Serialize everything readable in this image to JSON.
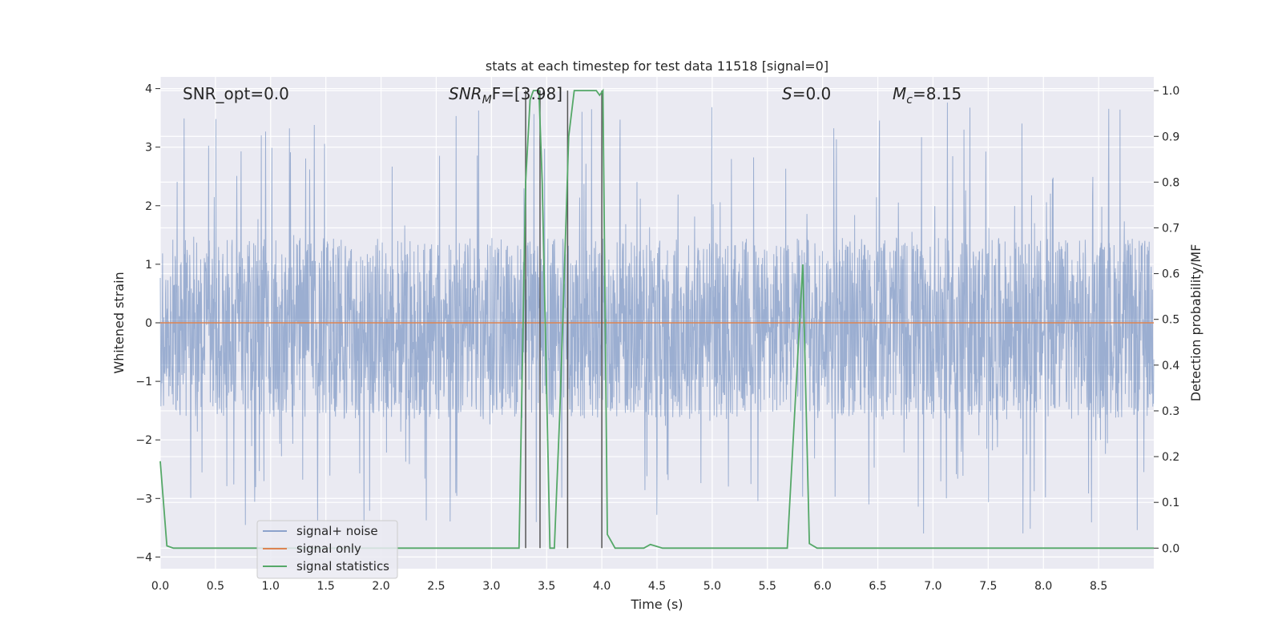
{
  "chart_data": {
    "type": "line",
    "title": "stats at each timestep for test data 11518 [signal=0]",
    "xlabel": "Time (s)",
    "ylabel_left": "Whitened strain",
    "ylabel_right": "Detection probability/MF",
    "xlim": [
      0.0,
      9.0
    ],
    "ylim_left": [
      -4.2,
      4.2
    ],
    "ylim_right": [
      -0.045,
      1.03
    ],
    "xticks": [
      0.0,
      0.5,
      1.0,
      1.5,
      2.0,
      2.5,
      3.0,
      3.5,
      4.0,
      4.5,
      5.0,
      5.5,
      6.0,
      6.5,
      7.0,
      7.5,
      8.0,
      8.5
    ],
    "xtick_labels": [
      "0.0",
      "0.5",
      "1.0",
      "1.5",
      "2.0",
      "2.5",
      "3.0",
      "3.5",
      "4.0",
      "4.5",
      "5.0",
      "5.5",
      "6.0",
      "6.5",
      "7.0",
      "7.5",
      "8.0",
      "8.5"
    ],
    "yticks_left": [
      -4,
      -3,
      -2,
      -1,
      0,
      1,
      2,
      3,
      4
    ],
    "ytick_labels_left": [
      "−4",
      "−3",
      "−2",
      "−1",
      "0",
      "1",
      "2",
      "3",
      "4"
    ],
    "yticks_right": [
      0.0,
      0.1,
      0.2,
      0.3,
      0.4,
      0.5,
      0.6,
      0.7,
      0.8,
      0.9,
      1.0
    ],
    "ytick_labels_right": [
      "0.0",
      "0.1",
      "0.2",
      "0.3",
      "0.4",
      "0.5",
      "0.6",
      "0.7",
      "0.8",
      "0.9",
      "1.0"
    ],
    "grid": true,
    "legend_position": "lower-left",
    "annotations": {
      "snr_opt": "SNR_opt=0.0",
      "snr_mf_label": "SNR",
      "snr_mf_sub": "M",
      "snr_mf_rest": "F=[3.98]",
      "s_label": "S",
      "s_rest": "=0.0",
      "mc_label": "M",
      "mc_sub": "c",
      "mc_rest": "=8.15"
    },
    "colors": {
      "background": "#eaeaf2",
      "grid": "#ffffff",
      "signal_noise": "#4c72b0",
      "signal_only": "#dd8452",
      "signal_statistics": "#55a868",
      "vlines": "#555555"
    },
    "series": [
      {
        "name": "signal+ noise",
        "axis": "left",
        "description_of_values": "whitened strain noise, amplitude envelope approx ±1.5 with peaks to ±3.8",
        "envelope_upper": 1.45,
        "envelope_lower": -1.65,
        "peak_max": 3.8,
        "peak_min": -3.6
      },
      {
        "name": "signal only",
        "axis": "left",
        "x": [
          0.0,
          9.0
        ],
        "y": [
          0.0,
          0.0
        ]
      },
      {
        "name": "signal statistics",
        "axis": "right",
        "x": [
          0.0,
          0.06,
          0.12,
          3.25,
          3.31,
          3.35,
          3.38,
          3.43,
          3.46,
          3.53,
          3.57,
          3.62,
          3.7,
          3.75,
          3.95,
          3.98,
          4.01,
          4.05,
          4.12,
          4.38,
          4.44,
          4.55,
          5.68,
          5.82,
          5.88,
          5.95,
          9.0
        ],
        "y": [
          0.19,
          0.005,
          0.0,
          0.0,
          0.8,
          0.98,
          1.0,
          1.0,
          0.8,
          0.0,
          0.0,
          0.3,
          0.9,
          1.0,
          1.0,
          0.99,
          1.0,
          0.03,
          0.0,
          0.0,
          0.008,
          0.0,
          0.0,
          0.62,
          0.01,
          0.0,
          0.0
        ]
      }
    ],
    "vertical_lines_x": [
      3.31,
      3.44,
      3.69,
      4.0
    ],
    "legend": [
      "signal+ noise",
      "signal only",
      "signal statistics"
    ]
  }
}
